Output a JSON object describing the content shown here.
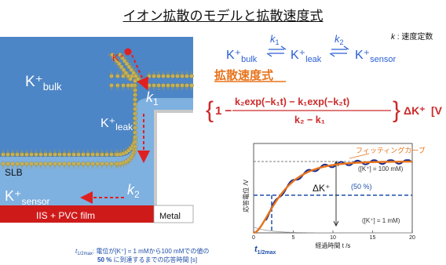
{
  "title": "イオン拡散のモデルと拡散速度式",
  "diagram": {
    "k_plus": "K⁺",
    "bulk_main": "K⁺",
    "bulk_sub": "bulk",
    "leak_main": "K⁺",
    "leak_sub": "leak",
    "sensor_main": "K⁺",
    "sensor_sub": "sensor",
    "k1": "k",
    "k1_sub": "1",
    "k2": "k",
    "k2_sub": "2",
    "slb": "SLB",
    "iis": "IIS + PVC film",
    "metal": "Metal"
  },
  "reaction": {
    "bulk": "K⁺",
    "bulk_sub": "bulk",
    "leak": "K⁺",
    "leak_sub": "leak",
    "sensor": "K⁺",
    "sensor_sub": "sensor",
    "k1": "k",
    "k1_sub": "1",
    "k2": "k",
    "k2_sub": "2",
    "note_k": "k",
    "note_text": " : 速度定数"
  },
  "equation": {
    "heading": "拡散速度式",
    "open_brace": "{",
    "one_minus": "1 −",
    "numerator": "k₂exp(−k₁t) − k₁exp(−k₂t)",
    "denominator": "k₂ − k₁",
    "close_brace": "}",
    "delta": "ΔK⁺",
    "tail": "[V"
  },
  "graph": {
    "fitting_label": "フィッティングカーブ",
    "high_label": "([K⁺] = 100 mM)",
    "half_label": "(50 %)",
    "low_label": "([K⁺] = 1 mM)",
    "delta_label": "ΔK⁺",
    "ylabel": "応答電位 /V",
    "xlabel": "経過時間 t /s",
    "xticks": [
      "0",
      "5",
      "10",
      "15",
      "20"
    ],
    "t_half": "t",
    "t_half_sub": "1/2max",
    "colors": {
      "fit": "#e8731a",
      "measured": "#1b2a8c",
      "guide": "#1f4fa8"
    }
  },
  "footnote": {
    "t_symbol": "t",
    "t_sub": "1/2max",
    "line1": ": 電位が[K⁺] = 1 mMから100 mMでの値の",
    "line2_bold": "50 %",
    "line2_rest": " に到達するまでの応答時間 [s]"
  }
}
